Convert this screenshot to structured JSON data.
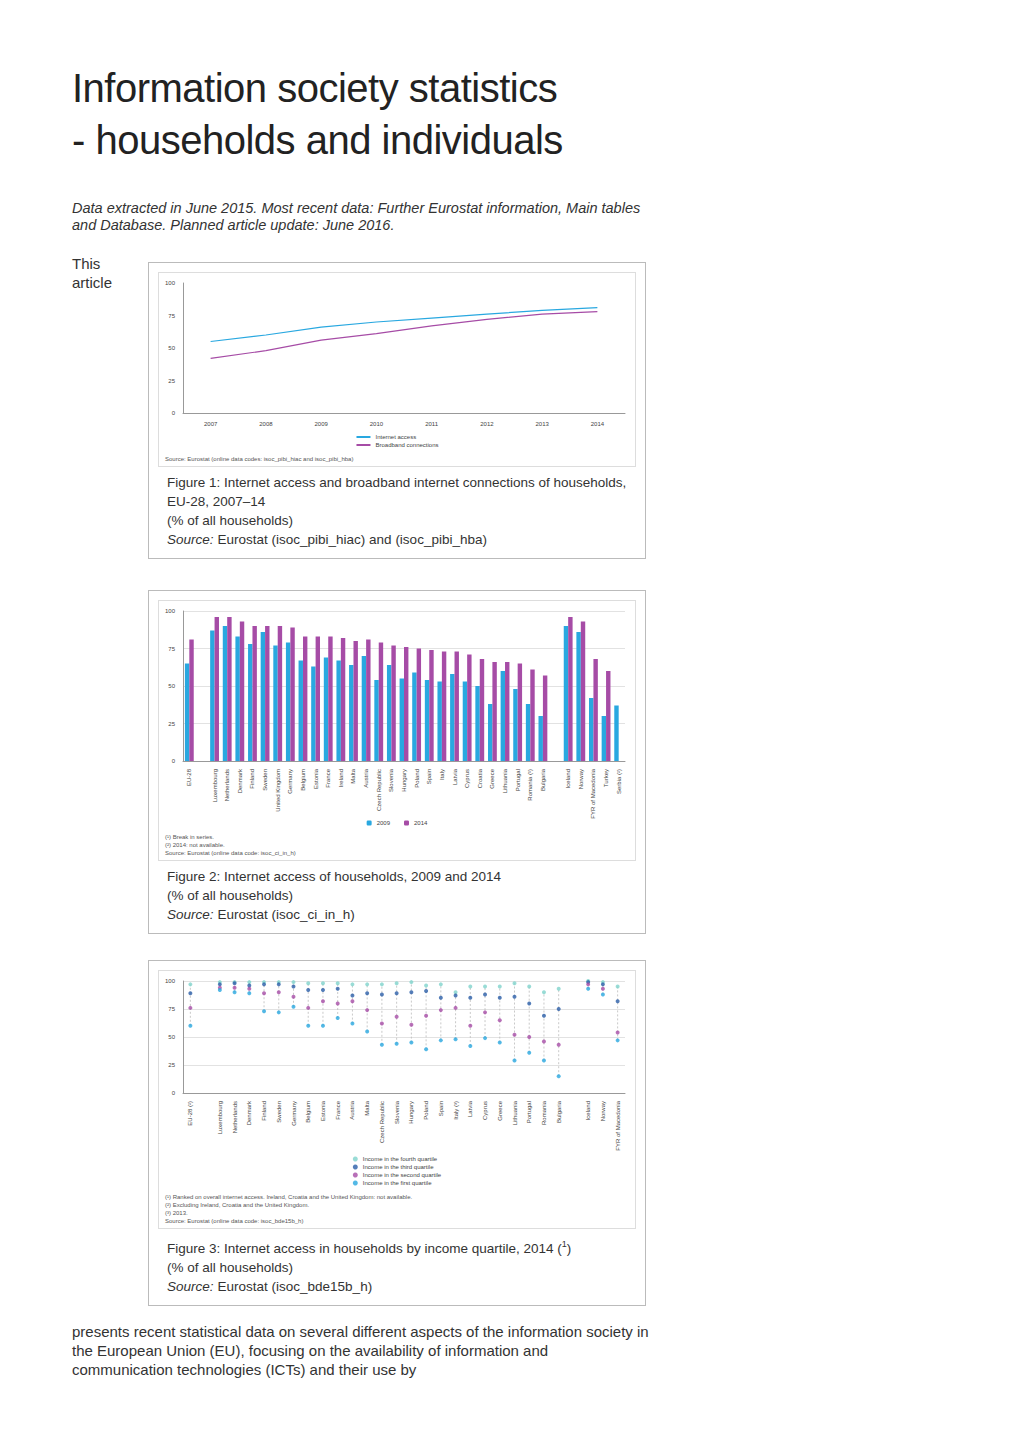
{
  "document": {
    "title_lines": [
      "Information society statistics",
      "- households and individuals"
    ],
    "note": "Data extracted in June 2015. Most recent data: Further Eurostat information, Main tables and Database. Planned article update: June 2016.",
    "intro": "This article",
    "figures": [
      {
        "caption": "Figure 1: Internet access and broadband internet connections of households, EU-28, 2007–14",
        "unit": "(% of all households)",
        "source_label": "Source:",
        "source": "Eurostat (isoc_pibi_hiac) and (isoc_pibi_hba)"
      },
      {
        "caption": "Figure 2: Internet access of households, 2009 and 2014",
        "unit": "(% of all households)",
        "source_label": "Source:",
        "source": "Eurostat (isoc_ci_in_h)"
      },
      {
        "caption": "Figure 3: Internet access in households by income quartile, 2014 (",
        "caption_sup": "1",
        "caption_end": ")",
        "unit": "(% of all households)",
        "source_label": "Source:",
        "source": "Eurostat (isoc_bde15b_h)"
      }
    ],
    "body": "presents recent statistical data on several different aspects of the information society in the European Union (EU), focusing on the availability of information and communication technologies (ICTs) and their use by"
  },
  "chart_data": [
    {
      "type": "line",
      "categories": [
        "2007",
        "2008",
        "2009",
        "2010",
        "2011",
        "2012",
        "2013",
        "2014"
      ],
      "series": [
        {
          "name": "Internet access",
          "color": "#29a8e0",
          "values": [
            55,
            60,
            66,
            70,
            73,
            76,
            79,
            81
          ]
        },
        {
          "name": "Broadband connections",
          "color": "#a64ca6",
          "values": [
            42,
            48,
            56,
            61,
            67,
            72,
            76,
            78
          ]
        }
      ],
      "ylim": [
        0,
        100
      ],
      "yticks": [
        0,
        25,
        50,
        75,
        100
      ],
      "grid": false,
      "legend": "bottom",
      "notes": [
        "Source: Eurostat (online data codes: isoc_pibi_hiac and isoc_pibi_hba)"
      ]
    },
    {
      "type": "bar",
      "categories": [
        "EU-28",
        null,
        "Luxembourg",
        "Netherlands",
        "Denmark",
        "Finland",
        "Sweden",
        "United Kingdom",
        "Germany",
        "Belgium",
        "Estonia",
        "France",
        "Ireland",
        "Malta",
        "Austria",
        "Czech Republic",
        "Slovenia",
        "Hungary",
        "Poland",
        "Spain",
        "Italy",
        "Latvia",
        "Cyprus",
        "Croatia",
        "Greece",
        "Lithuania",
        "Portugal",
        "Romania (¹)",
        "Bulgaria",
        null,
        "Iceland",
        "Norway",
        "FYR of Macedonia",
        "Turkey",
        "Serbia (²)"
      ],
      "series": [
        {
          "name": "2009",
          "color": "#29a8e0",
          "values": [
            65,
            null,
            87,
            90,
            83,
            78,
            86,
            77,
            79,
            67,
            63,
            69,
            67,
            64,
            70,
            54,
            64,
            55,
            59,
            54,
            53,
            58,
            53,
            50,
            38,
            60,
            48,
            38,
            30,
            null,
            90,
            86,
            42,
            30,
            37
          ]
        },
        {
          "name": "2014",
          "color": "#a64ca6",
          "values": [
            81,
            null,
            96,
            96,
            93,
            90,
            90,
            90,
            89,
            83,
            83,
            83,
            82,
            80,
            81,
            79,
            77,
            76,
            75,
            74,
            73,
            73,
            71,
            68,
            66,
            66,
            65,
            61,
            57,
            null,
            96,
            93,
            68,
            60,
            null
          ]
        }
      ],
      "ylim": [
        0,
        100
      ],
      "yticks": [
        0,
        25,
        50,
        75,
        100
      ],
      "grid": true,
      "legend": "bottom",
      "notes": [
        "(¹) Break in series.",
        "(²) 2014: not available.",
        "Source: Eurostat (online data code: isoc_ci_in_h)"
      ]
    },
    {
      "type": "scatter",
      "categories": [
        "EU-28 (²)",
        null,
        "Luxembourg",
        "Netherlands",
        "Denmark",
        "Finland",
        "Sweden",
        "Germany",
        "Belgium",
        "Estonia",
        "France",
        "Austria",
        "Malta",
        "Czech Republic",
        "Slovenia",
        "Hungary",
        "Poland",
        "Spain",
        "Italy (³)",
        "Latvia",
        "Cyprus",
        "Greece",
        "Lithuania",
        "Portugal",
        "Romania",
        "Bulgaria",
        null,
        "Iceland",
        "Norway",
        "FYR of Macedonia"
      ],
      "series": [
        {
          "name": "Income in the fourth quartile",
          "color": "#7fd3cc",
          "values": [
            97,
            null,
            99,
            99,
            99,
            99,
            99,
            99,
            98,
            98,
            98,
            97,
            97,
            97,
            98,
            99,
            96,
            97,
            90,
            95,
            95,
            95,
            98,
            95,
            90,
            93,
            null,
            100,
            99,
            95
          ]
        },
        {
          "name": "Income in the third quartile",
          "color": "#2b5ea8",
          "values": [
            89,
            null,
            97,
            98,
            96,
            97,
            97,
            95,
            92,
            92,
            93,
            87,
            89,
            88,
            89,
            90,
            91,
            85,
            87,
            85,
            88,
            85,
            86,
            80,
            69,
            75,
            null,
            99,
            97,
            82
          ]
        },
        {
          "name": "Income in the second quartile",
          "color": "#a64ca6",
          "values": [
            76,
            null,
            94,
            94,
            93,
            89,
            90,
            86,
            76,
            82,
            80,
            82,
            74,
            62,
            68,
            61,
            69,
            74,
            76,
            60,
            72,
            65,
            52,
            50,
            46,
            43,
            null,
            97,
            93,
            54
          ]
        },
        {
          "name": "Income in the first quartile",
          "color": "#29a8e0",
          "values": [
            60,
            null,
            92,
            90,
            89,
            73,
            72,
            77,
            60,
            60,
            67,
            62,
            55,
            43,
            44,
            45,
            39,
            47,
            48,
            42,
            49,
            45,
            29,
            36,
            29,
            15,
            null,
            93,
            88,
            47
          ]
        }
      ],
      "marker": "circle",
      "ylim": [
        0,
        100
      ],
      "yticks": [
        0,
        25,
        50,
        75,
        100
      ],
      "grid": true,
      "legend": "bottom",
      "notes": [
        "(¹) Ranked on overall internet access. Ireland, Croatia and the United Kingdom: not available.",
        "(²) Excluding Ireland, Croatia and the United Kingdom.",
        "(³) 2013.",
        "Source: Eurostat (online data code: isoc_bde15b_h)"
      ]
    }
  ]
}
